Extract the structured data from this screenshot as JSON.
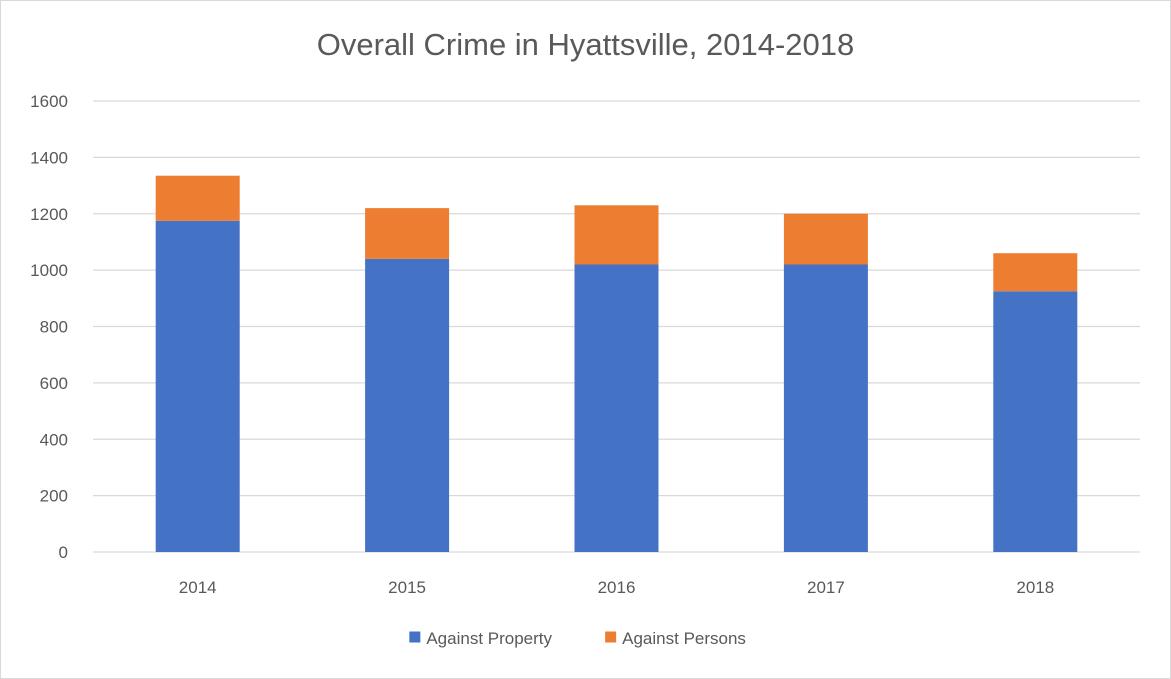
{
  "chart_data": {
    "type": "bar",
    "stacked": true,
    "title": "Overall Crime in Hyattsville, 2014-2018",
    "xlabel": "",
    "ylabel": "",
    "categories": [
      "2014",
      "2015",
      "2016",
      "2017",
      "2018"
    ],
    "series": [
      {
        "name": "Against Property",
        "values": [
          1175,
          1040,
          1020,
          1020,
          925
        ],
        "color": "#4472c4"
      },
      {
        "name": "Against Persons",
        "values": [
          160,
          180,
          210,
          180,
          135
        ],
        "color": "#ed7d31"
      }
    ],
    "ylim": [
      0,
      1600
    ],
    "yticks": [
      "0",
      "200",
      "400",
      "600",
      "800",
      "1000",
      "1200",
      "1400",
      "1600"
    ],
    "grid": true,
    "legend_position": "bottom",
    "colors": {
      "gridline": "#d9d9d9",
      "text": "#595959"
    }
  }
}
